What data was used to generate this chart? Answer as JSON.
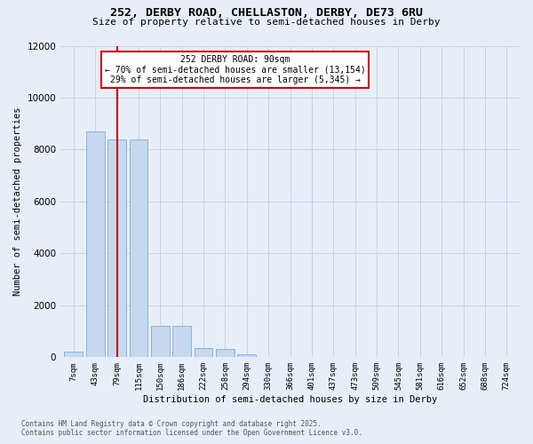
{
  "title_line1": "252, DERBY ROAD, CHELLASTON, DERBY, DE73 6RU",
  "title_line2": "Size of property relative to semi-detached houses in Derby",
  "xlabel": "Distribution of semi-detached houses by size in Derby",
  "ylabel": "Number of semi-detached properties",
  "footer_line1": "Contains HM Land Registry data © Crown copyright and database right 2025.",
  "footer_line2": "Contains public sector information licensed under the Open Government Licence v3.0.",
  "categories": [
    "7sqm",
    "43sqm",
    "79sqm",
    "115sqm",
    "150sqm",
    "186sqm",
    "222sqm",
    "258sqm",
    "294sqm",
    "330sqm",
    "366sqm",
    "401sqm",
    "437sqm",
    "473sqm",
    "509sqm",
    "545sqm",
    "581sqm",
    "616sqm",
    "652sqm",
    "688sqm",
    "724sqm"
  ],
  "values": [
    200,
    8700,
    8400,
    8400,
    1200,
    1200,
    350,
    320,
    100,
    0,
    0,
    0,
    0,
    0,
    0,
    0,
    0,
    0,
    0,
    0,
    0
  ],
  "bar_color": "#c5d8f0",
  "bar_edge_color": "#7aafd4",
  "grid_color": "#c8d4e8",
  "background_color": "#e8eef8",
  "vline_x_index": 2,
  "vline_color": "#cc0000",
  "annotation_title": "252 DERBY ROAD: 90sqm",
  "annotation_line1": "← 70% of semi-detached houses are smaller (13,154)",
  "annotation_line2": "29% of semi-detached houses are larger (5,345) →",
  "annotation_box_color": "#cc0000",
  "ylim": [
    0,
    12000
  ],
  "yticks": [
    0,
    2000,
    4000,
    6000,
    8000,
    10000,
    12000
  ],
  "title1_fontsize": 9.5,
  "title2_fontsize": 8.0,
  "xlabel_fontsize": 7.5,
  "ylabel_fontsize": 7.5,
  "xtick_fontsize": 6.5,
  "ytick_fontsize": 7.5,
  "footer_fontsize": 5.5,
  "annot_fontsize": 7.0
}
